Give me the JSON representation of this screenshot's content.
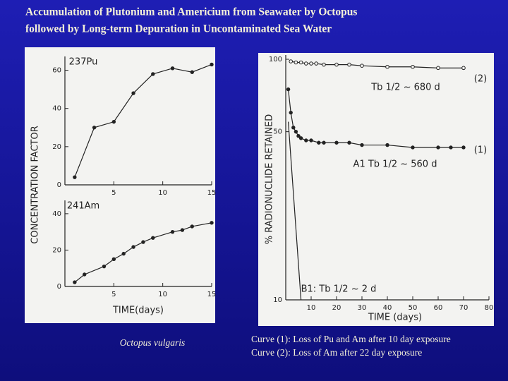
{
  "title": [
    "Accumulation of Plutonium and Americium from Seawater by Octopus",
    "followed by Long-term Depuration in Uncontaminated Sea Water"
  ],
  "captions": {
    "left": "Octopus vulgaris",
    "right": [
      "Curve (1): Loss of Pu and Am after 10 day exposure",
      "Curve (2): Loss of Am after 22 day exposure"
    ]
  },
  "chart_data": [
    {
      "type": "line",
      "ylabel": "CONCENTRATION FACTOR",
      "annotations": [
        "237Pu"
      ],
      "xlim": [
        0,
        15
      ],
      "xticks": [
        5,
        10,
        15
      ],
      "ylim": [
        0,
        65
      ],
      "yticks": [
        0,
        20,
        40,
        60
      ],
      "series": [
        {
          "color": "#222222",
          "x": [
            1,
            3,
            5,
            7,
            9,
            11,
            13,
            15
          ],
          "values": [
            4,
            30,
            33,
            48,
            58,
            61,
            59,
            63
          ]
        }
      ]
    },
    {
      "type": "line",
      "xlabel": "TIME(days)",
      "annotations": [
        "241Am"
      ],
      "xlim": [
        0,
        15
      ],
      "xticks": [
        5,
        10,
        15
      ],
      "ylim": [
        0,
        45
      ],
      "yticks": [
        0,
        20,
        40
      ],
      "series": [
        {
          "color": "#222222",
          "x": [
            1,
            2,
            4,
            5,
            6,
            7,
            8,
            9,
            11,
            12,
            13,
            15
          ],
          "values": [
            2.3,
            6.6,
            11,
            15,
            18,
            21.7,
            24.4,
            26.7,
            30,
            31,
            33,
            35
          ]
        }
      ]
    },
    {
      "type": "line",
      "log_y": true,
      "xlabel": "TIME (days)",
      "ylabel": "% RADIONUCLIDE RETAINED",
      "annotations": [
        "(2)",
        "Tb 1/2 ~ 680 d",
        "(1)",
        "A1 Tb 1/2 ~ 560 d",
        "B1: Tb 1/2 ~ 2 d"
      ],
      "xlim": [
        0,
        80
      ],
      "xticks": [
        10,
        20,
        30,
        40,
        50,
        60,
        70,
        80
      ],
      "ylim": [
        10,
        100
      ],
      "yticks": [
        10,
        50,
        100
      ],
      "series": [
        {
          "color": "#222222",
          "marker": "open",
          "x": [
            2,
            4,
            6,
            8,
            10,
            12,
            15,
            20,
            25,
            30,
            40,
            50,
            60,
            70
          ],
          "values": [
            98,
            97,
            97,
            96,
            96,
            96,
            95,
            95,
            95,
            94,
            93,
            93,
            92,
            92
          ]
        },
        {
          "color": "#222222",
          "marker": "dot",
          "x": [
            1,
            2,
            3,
            4,
            5,
            6,
            8,
            10,
            13,
            15,
            20,
            25,
            30,
            40,
            50,
            60,
            65,
            70
          ],
          "values": [
            75,
            60,
            52,
            50,
            48,
            47,
            46,
            46,
            45,
            45,
            45,
            45,
            44,
            44,
            43,
            43,
            43,
            43
          ]
        },
        {
          "color": "#222222",
          "marker": "none",
          "x": [
            1,
            6
          ],
          "values": [
            55,
            10
          ]
        }
      ]
    }
  ]
}
